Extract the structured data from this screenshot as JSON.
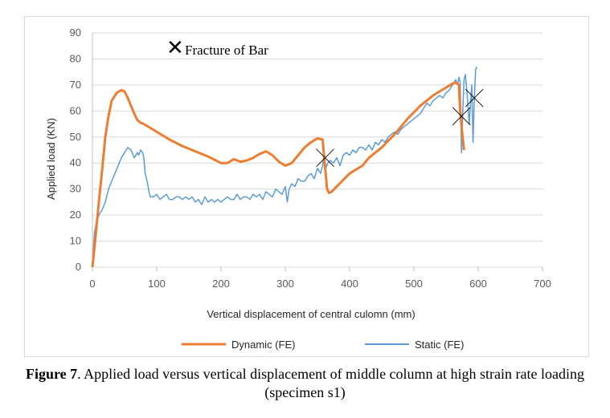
{
  "caption": {
    "label": "Figure 7",
    "text": ". Applied load versus vertical displacement of middle column at high strain rate loading (specimen s1)"
  },
  "annotation": {
    "marker": "✕",
    "text": "Fracture of Bar"
  },
  "colors": {
    "dynamic": "#ED7D31",
    "static": "#5B9BD5",
    "grid": "#d9d9d9",
    "axis": "#bfbfbf"
  },
  "chart_data": {
    "type": "line",
    "title": "",
    "xlabel": "Vertical displacement of central culomn (mm)",
    "ylabel": "Applied  load (KN)",
    "xlim": [
      0,
      700
    ],
    "ylim": [
      0,
      90
    ],
    "x_ticks": [
      0,
      100,
      200,
      300,
      400,
      500,
      600,
      700
    ],
    "y_ticks": [
      0,
      10,
      20,
      30,
      40,
      50,
      60,
      70,
      80,
      90
    ],
    "grid": "horizontal",
    "legend": "bottom",
    "series": [
      {
        "name": "Dynamic (FE)",
        "color": "#ED7D31",
        "x": [
          0,
          5,
          10,
          15,
          20,
          25,
          30,
          38,
          45,
          50,
          55,
          60,
          65,
          70,
          75,
          80,
          90,
          100,
          120,
          140,
          160,
          180,
          200,
          210,
          220,
          230,
          240,
          250,
          260,
          270,
          280,
          290,
          300,
          310,
          320,
          330,
          340,
          350,
          358,
          362,
          365,
          368,
          372,
          380,
          390,
          400,
          410,
          420,
          430,
          440,
          450,
          460,
          470,
          480,
          490,
          500,
          510,
          520,
          530,
          540,
          550,
          560,
          565,
          570,
          572,
          575,
          578
        ],
        "y": [
          0,
          12,
          25,
          37,
          50,
          58,
          64,
          67,
          68,
          67.5,
          65,
          62,
          59,
          56.5,
          55.5,
          55,
          53.5,
          52,
          49,
          46.5,
          44.5,
          42.5,
          40,
          40,
          41.5,
          40.5,
          41,
          42,
          43.5,
          44.5,
          43,
          40.5,
          39,
          40,
          43,
          46,
          48,
          49.5,
          49,
          38,
          30,
          28.5,
          29,
          31,
          33.5,
          36,
          37.5,
          39,
          42,
          44,
          46,
          48.5,
          51,
          54,
          57,
          59.5,
          62,
          64,
          66,
          67.5,
          69,
          70.5,
          71,
          70,
          60,
          52,
          45
        ]
      },
      {
        "name": "Static (FE)",
        "color": "#5B9BD5",
        "x": [
          0,
          3,
          6,
          10,
          15,
          20,
          25,
          30,
          35,
          40,
          45,
          50,
          55,
          60,
          65,
          70,
          72,
          75,
          78,
          80,
          82,
          85,
          88,
          90,
          95,
          100,
          105,
          110,
          115,
          120,
          125,
          130,
          135,
          140,
          145,
          150,
          155,
          160,
          165,
          170,
          175,
          180,
          185,
          190,
          195,
          200,
          205,
          210,
          215,
          220,
          225,
          230,
          235,
          240,
          245,
          250,
          255,
          260,
          265,
          270,
          275,
          280,
          285,
          290,
          295,
          300,
          303,
          306,
          310,
          315,
          320,
          325,
          330,
          335,
          340,
          345,
          350,
          355,
          358,
          360,
          363,
          366,
          370,
          375,
          380,
          385,
          390,
          395,
          400,
          405,
          410,
          415,
          420,
          425,
          430,
          435,
          440,
          445,
          450,
          455,
          460,
          465,
          470,
          475,
          480,
          485,
          490,
          495,
          500,
          505,
          510,
          515,
          520,
          525,
          530,
          535,
          540,
          545,
          550,
          555,
          560,
          565,
          568,
          570,
          572,
          574,
          576,
          578,
          580,
          583,
          586,
          590,
          592,
          594,
          596,
          598
        ],
        "y": [
          0,
          13,
          17,
          20,
          22,
          25,
          30,
          33,
          36,
          39,
          42,
          44,
          46,
          45,
          42,
          44,
          43,
          45,
          44,
          42,
          36,
          33,
          29,
          27,
          27,
          28,
          26,
          27,
          28,
          26,
          26,
          27,
          27,
          26,
          27,
          26,
          27,
          25,
          26,
          24,
          27,
          25,
          26,
          25,
          26,
          25,
          26,
          27,
          26,
          26,
          28,
          26,
          27,
          27,
          26,
          28,
          27,
          28,
          26,
          29,
          28,
          27,
          30,
          29,
          28,
          31,
          25,
          30,
          32,
          31,
          34,
          33,
          33,
          35,
          36,
          34,
          38,
          36,
          39,
          43,
          38,
          40,
          41,
          40,
          42,
          39,
          43,
          44,
          43,
          45,
          44,
          46,
          46,
          45,
          47,
          45,
          48,
          47,
          49,
          48,
          50,
          51,
          52,
          51,
          53,
          54,
          55,
          56,
          57,
          58,
          59,
          61,
          63,
          62,
          64,
          65,
          66,
          65,
          67,
          68,
          70,
          72,
          70,
          73,
          71,
          44,
          60,
          72,
          74,
          66,
          55,
          70,
          48,
          65,
          76,
          77
        ]
      }
    ]
  }
}
